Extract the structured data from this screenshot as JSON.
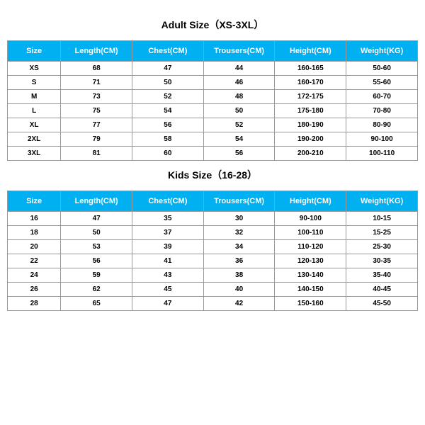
{
  "tables": [
    {
      "title": "Adult Size（XS-3XL）",
      "header_bg": "#00b0f0",
      "header_fg": "#ffffff",
      "columns": [
        "Size",
        "Length(CM)",
        "Chest(CM)",
        "Trousers(CM)",
        "Height(CM)",
        "Weight(KG)"
      ],
      "rows": [
        [
          "XS",
          "68",
          "47",
          "44",
          "160-165",
          "50-60"
        ],
        [
          "S",
          "71",
          "50",
          "46",
          "160-170",
          "55-60"
        ],
        [
          "M",
          "73",
          "52",
          "48",
          "172-175",
          "60-70"
        ],
        [
          "L",
          "75",
          "54",
          "50",
          "175-180",
          "70-80"
        ],
        [
          "XL",
          "77",
          "56",
          "52",
          "180-190",
          "80-90"
        ],
        [
          "2XL",
          "79",
          "58",
          "54",
          "190-200",
          "90-100"
        ],
        [
          "3XL",
          "81",
          "60",
          "56",
          "200-210",
          "100-110"
        ]
      ]
    },
    {
      "title": "Kids Size（16-28）",
      "header_bg": "#00b0f0",
      "header_fg": "#ffffff",
      "columns": [
        "Size",
        "Length(CM)",
        "Chest(CM)",
        "Trousers(CM)",
        "Height(CM)",
        "Weight(KG)"
      ],
      "rows": [
        [
          "16",
          "47",
          "35",
          "30",
          "90-100",
          "10-15"
        ],
        [
          "18",
          "50",
          "37",
          "32",
          "100-110",
          "15-25"
        ],
        [
          "20",
          "53",
          "39",
          "34",
          "110-120",
          "25-30"
        ],
        [
          "22",
          "56",
          "41",
          "36",
          "120-130",
          "30-35"
        ],
        [
          "24",
          "59",
          "43",
          "38",
          "130-140",
          "35-40"
        ],
        [
          "26",
          "62",
          "45",
          "40",
          "140-150",
          "40-45"
        ],
        [
          "28",
          "65",
          "47",
          "42",
          "150-160",
          "45-50"
        ]
      ]
    }
  ],
  "title_color": "#000000",
  "title_fontsize": 14,
  "border_color": "#999999",
  "row_bg": "#ffffff"
}
